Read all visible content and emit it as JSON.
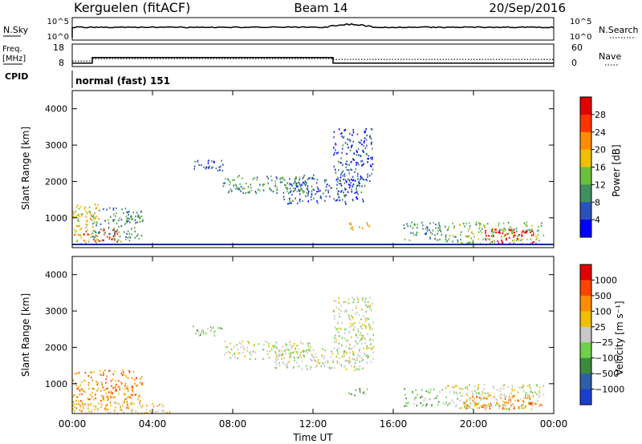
{
  "header": {
    "station": "Kerguelen (fitACF)",
    "beam": "Beam 14",
    "date": "20/Sep/2016"
  },
  "strips": {
    "nsky_label": "N.Sky",
    "nsearch_label": "N.Search",
    "sky_ticks": [
      "10^5",
      "10^0"
    ],
    "search_ticks": [
      "10^5",
      "10^0"
    ],
    "freq_label_1": "Freq.",
    "freq_label_2": "[MHz]",
    "freq_ticks": [
      "18",
      "8"
    ],
    "nave_label": "Nave",
    "nave_ticks": [
      "60",
      "0"
    ],
    "cpid_label": "CPID",
    "cpid_value": "normal (fast) 151",
    "freq_steps": [
      {
        "from": 0,
        "to": 1,
        "mhz": 9.5
      },
      {
        "from": 1,
        "to": 13,
        "mhz": 12.0
      },
      {
        "from": 13,
        "to": 24,
        "mhz": 9.5
      }
    ]
  },
  "chart_data": [
    {
      "type": "heatmap",
      "name": "power",
      "ylabel": "Slant Range [km]",
      "xlabel": "",
      "ylim": [
        180,
        4500
      ],
      "xlim": [
        0,
        24
      ],
      "yticks": [
        "1000",
        "2000",
        "3000",
        "4000"
      ],
      "colorbar_label": "Power [dB]",
      "colorbar_ticks": [
        "4",
        "8",
        "12",
        "16",
        "20",
        "24",
        "28"
      ],
      "colorbar_colors": [
        "#0000ff",
        "#2a52be",
        "#3f8f60",
        "#6cbf3a",
        "#f0c000",
        "#ff8c00",
        "#ff3300",
        "#e00000"
      ],
      "regions": [
        {
          "t0": 0.0,
          "t1": 1.3,
          "r0": 300,
          "r1": 1400,
          "c": 4
        },
        {
          "t0": 0.3,
          "t1": 2.5,
          "r0": 350,
          "r1": 700,
          "c": 6
        },
        {
          "t0": 1.0,
          "t1": 3.5,
          "r0": 400,
          "r1": 1300,
          "c": 2
        },
        {
          "t0": 6.0,
          "t1": 7.5,
          "r0": 2300,
          "r1": 2600,
          "c": 1
        },
        {
          "t0": 7.5,
          "t1": 12.0,
          "r0": 1700,
          "r1": 2200,
          "c": 2
        },
        {
          "t0": 10.5,
          "t1": 14.5,
          "r0": 1400,
          "r1": 2100,
          "c": 1
        },
        {
          "t0": 13.0,
          "t1": 15.0,
          "r0": 1900,
          "r1": 3500,
          "c": 1
        },
        {
          "t0": 13.5,
          "t1": 14.8,
          "r0": 700,
          "r1": 900,
          "c": 4
        },
        {
          "t0": 16.5,
          "t1": 18.5,
          "r0": 400,
          "r1": 900,
          "c": 2
        },
        {
          "t0": 18.5,
          "t1": 23.5,
          "r0": 300,
          "r1": 900,
          "c": 3
        },
        {
          "t0": 20.5,
          "t1": 23.0,
          "r0": 300,
          "r1": 700,
          "c": 7
        }
      ]
    },
    {
      "type": "heatmap",
      "name": "velocity",
      "ylabel": "Slant Range [km]",
      "xlabel": "Time UT",
      "ylim": [
        180,
        4500
      ],
      "xlim": [
        0,
        24
      ],
      "xticks": [
        "00:00",
        "04:00",
        "08:00",
        "12:00",
        "16:00",
        "20:00",
        "00:00"
      ],
      "yticks": [
        "1000",
        "2000",
        "3000",
        "4000"
      ],
      "colorbar_label": "Velocity [m s⁻¹]",
      "colorbar_ticks": [
        "1000",
        "500",
        "100",
        "25",
        "−25",
        "−100",
        "−500",
        "−1000"
      ],
      "colorbar_colors": [
        "#1a3fd0",
        "#2e5fa8",
        "#3a8c3a",
        "#6fd04a",
        "#c8c8c8",
        "#f0c000",
        "#ff8c00",
        "#ff4400",
        "#e00000"
      ],
      "regions": [
        {
          "t0": 0.0,
          "t1": 3.5,
          "r0": 300,
          "r1": 1400,
          "c": 6
        },
        {
          "t0": 0.0,
          "t1": 5.0,
          "r0": 200,
          "r1": 500,
          "c": 5
        },
        {
          "t0": 6.0,
          "t1": 7.5,
          "r0": 2300,
          "r1": 2600,
          "c": 3
        },
        {
          "t0": 7.5,
          "t1": 12.0,
          "r0": 1700,
          "r1": 2200,
          "c": 4
        },
        {
          "t0": 10.0,
          "t1": 14.5,
          "r0": 1400,
          "r1": 2000,
          "c": 4
        },
        {
          "t0": 13.0,
          "t1": 15.0,
          "r0": 1600,
          "r1": 3400,
          "c": 4
        },
        {
          "t0": 13.5,
          "t1": 14.8,
          "r0": 700,
          "r1": 900,
          "c": 3
        },
        {
          "t0": 16.5,
          "t1": 18.5,
          "r0": 400,
          "r1": 900,
          "c": 3
        },
        {
          "t0": 18.5,
          "t1": 23.5,
          "r0": 300,
          "r1": 1000,
          "c": 4
        },
        {
          "t0": 19.5,
          "t1": 23.5,
          "r0": 300,
          "r1": 700,
          "c": 6
        }
      ]
    }
  ]
}
